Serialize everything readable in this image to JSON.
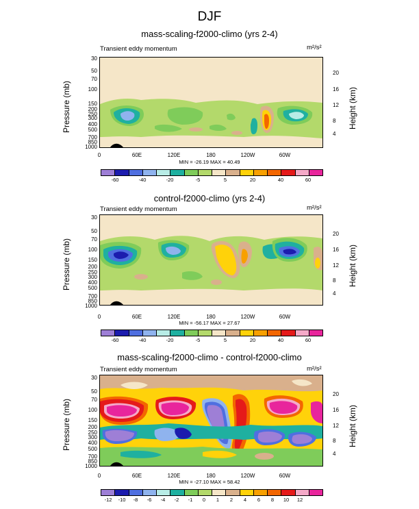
{
  "title": "DJF",
  "chart_data": [
    {
      "type": "heatmap",
      "title": "mass-scaling-f2000-climo (yrs 2-4)",
      "subtitle": "Transient eddy momentum",
      "units": "m²/s²",
      "ylabel": "Pressure (mb)",
      "ylabel_right": "Height (km)",
      "yticks_left": [
        "30",
        "50",
        "70",
        "100",
        "150",
        "200",
        "250",
        "300",
        "400",
        "500",
        "700",
        "850",
        "1000"
      ],
      "yticks_right": [
        "20",
        "16",
        "12",
        "8",
        "4"
      ],
      "xticks": [
        "0",
        "60E",
        "120E",
        "180",
        "120W",
        "60W"
      ],
      "minmax": "MIN = -26.19   MAX = 40.49",
      "colorbar_labels": [
        "-60",
        "-40",
        "-20",
        "-5",
        "5",
        "20",
        "40",
        "60"
      ],
      "colors": [
        "#9e7fd6",
        "#1c1cae",
        "#4f6fe0",
        "#8fb3ee",
        "#b8ece6",
        "#1fb0a0",
        "#7fcc5a",
        "#b3d96b",
        "#f5e6c8",
        "#d9b08c",
        "#ffd20a",
        "#f8a000",
        "#f36600",
        "#e51a1a",
        "#f5a9c8",
        "#e8259c"
      ]
    },
    {
      "type": "heatmap",
      "title": "control-f2000-climo (yrs 2-4)",
      "subtitle": "Transient eddy momentum",
      "units": "m²/s²",
      "ylabel": "Pressure (mb)",
      "ylabel_right": "Height (km)",
      "yticks_left": [
        "30",
        "50",
        "70",
        "100",
        "150",
        "200",
        "250",
        "300",
        "400",
        "500",
        "700",
        "850",
        "1000"
      ],
      "yticks_right": [
        "20",
        "16",
        "12",
        "8",
        "4"
      ],
      "xticks": [
        "0",
        "60E",
        "120E",
        "180",
        "120W",
        "60W"
      ],
      "minmax": "MIN = -56.17   MAX = 27.67",
      "colorbar_labels": [
        "-60",
        "-40",
        "-20",
        "-5",
        "5",
        "20",
        "40",
        "60"
      ]
    },
    {
      "type": "heatmap",
      "title": "mass-scaling-f2000-climo - control-f2000-climo",
      "subtitle": "Transient eddy momentum",
      "units": "m²/s²",
      "ylabel": "Pressure (mb)",
      "ylabel_right": "Height (km)",
      "yticks_left": [
        "30",
        "50",
        "70",
        "100",
        "150",
        "200",
        "250",
        "300",
        "400",
        "500",
        "700",
        "850",
        "1000"
      ],
      "yticks_right": [
        "20",
        "16",
        "12",
        "8",
        "4"
      ],
      "xticks": [
        "0",
        "60E",
        "120E",
        "180",
        "120W",
        "60W"
      ],
      "minmax": "MIN = -27.10   MAX = 58.42",
      "colorbar_labels": [
        "-12",
        "-10",
        "-8",
        "-6",
        "-4",
        "-2",
        "-1",
        "0",
        "1",
        "2",
        "4",
        "6",
        "8",
        "10",
        "12"
      ]
    }
  ]
}
